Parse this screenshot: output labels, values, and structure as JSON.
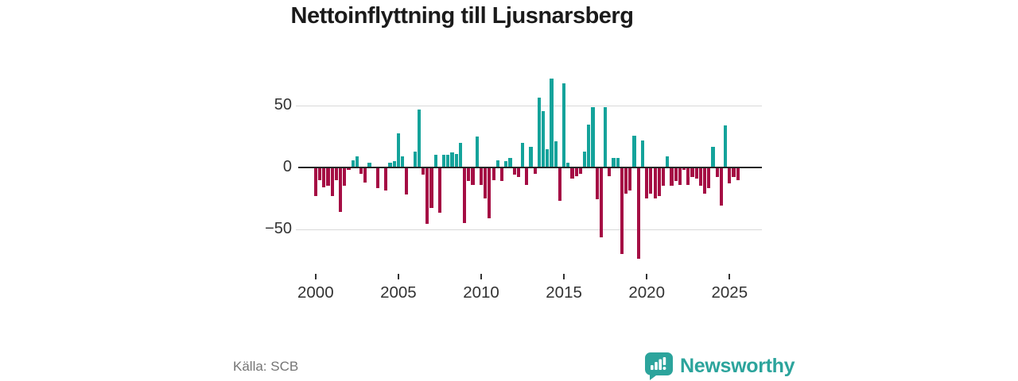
{
  "title": "Nettoinflyttning till Ljusnarsberg",
  "source_label": "Källa: SCB",
  "brand": {
    "name": "Newsworthy",
    "color": "#2ca49c"
  },
  "colors": {
    "positive_bar": "#14a39b",
    "negative_bar": "#a50d44",
    "gridline": "#d9d9d9",
    "zero_line": "#262626",
    "axis_text": "#333333",
    "title_text": "#1b1b1b",
    "source_text": "#757575"
  },
  "chart_data": {
    "type": "bar",
    "title": "Nettoinflyttning till Ljusnarsberg",
    "xlabel": "",
    "ylabel": "",
    "start_period": "2000Q1",
    "period": "quarterly",
    "values": [
      -23,
      -10,
      -16,
      -15,
      -23,
      -10,
      -36,
      -15,
      -2,
      6,
      9,
      -5,
      -12,
      4,
      0,
      -17,
      0,
      -19,
      4,
      5,
      28,
      9,
      -22,
      0,
      13,
      47,
      -6,
      -46,
      -33,
      10,
      -37,
      10,
      10,
      12,
      11,
      20,
      -45,
      -11,
      -14,
      25,
      -14,
      -25,
      -41,
      -10,
      6,
      -11,
      5,
      8,
      -6,
      -8,
      20,
      -14,
      17,
      -5,
      57,
      46,
      15,
      72,
      21,
      -27,
      68,
      4,
      -9,
      -7,
      -5,
      13,
      35,
      49,
      -26,
      -57,
      49,
      -7,
      8,
      8,
      -70,
      -21,
      -19,
      26,
      -74,
      22,
      -25,
      -21,
      -25,
      -23,
      -15,
      9,
      -15,
      -11,
      -14,
      -2,
      -14,
      -8,
      -9,
      -15,
      -21,
      -17,
      17,
      -8,
      -31,
      34,
      -13,
      -8,
      -10
    ],
    "yticks": [
      50,
      0,
      -50
    ],
    "ytick_labels": [
      "50",
      "0",
      "−50"
    ],
    "xticks": [
      2000,
      2005,
      2010,
      2015,
      2020,
      2025
    ],
    "xtick_labels": [
      "2000",
      "2005",
      "2010",
      "2015",
      "2020",
      "2025"
    ],
    "ylim": [
      -80,
      78
    ],
    "grid": "horizontal",
    "legend": "none"
  }
}
